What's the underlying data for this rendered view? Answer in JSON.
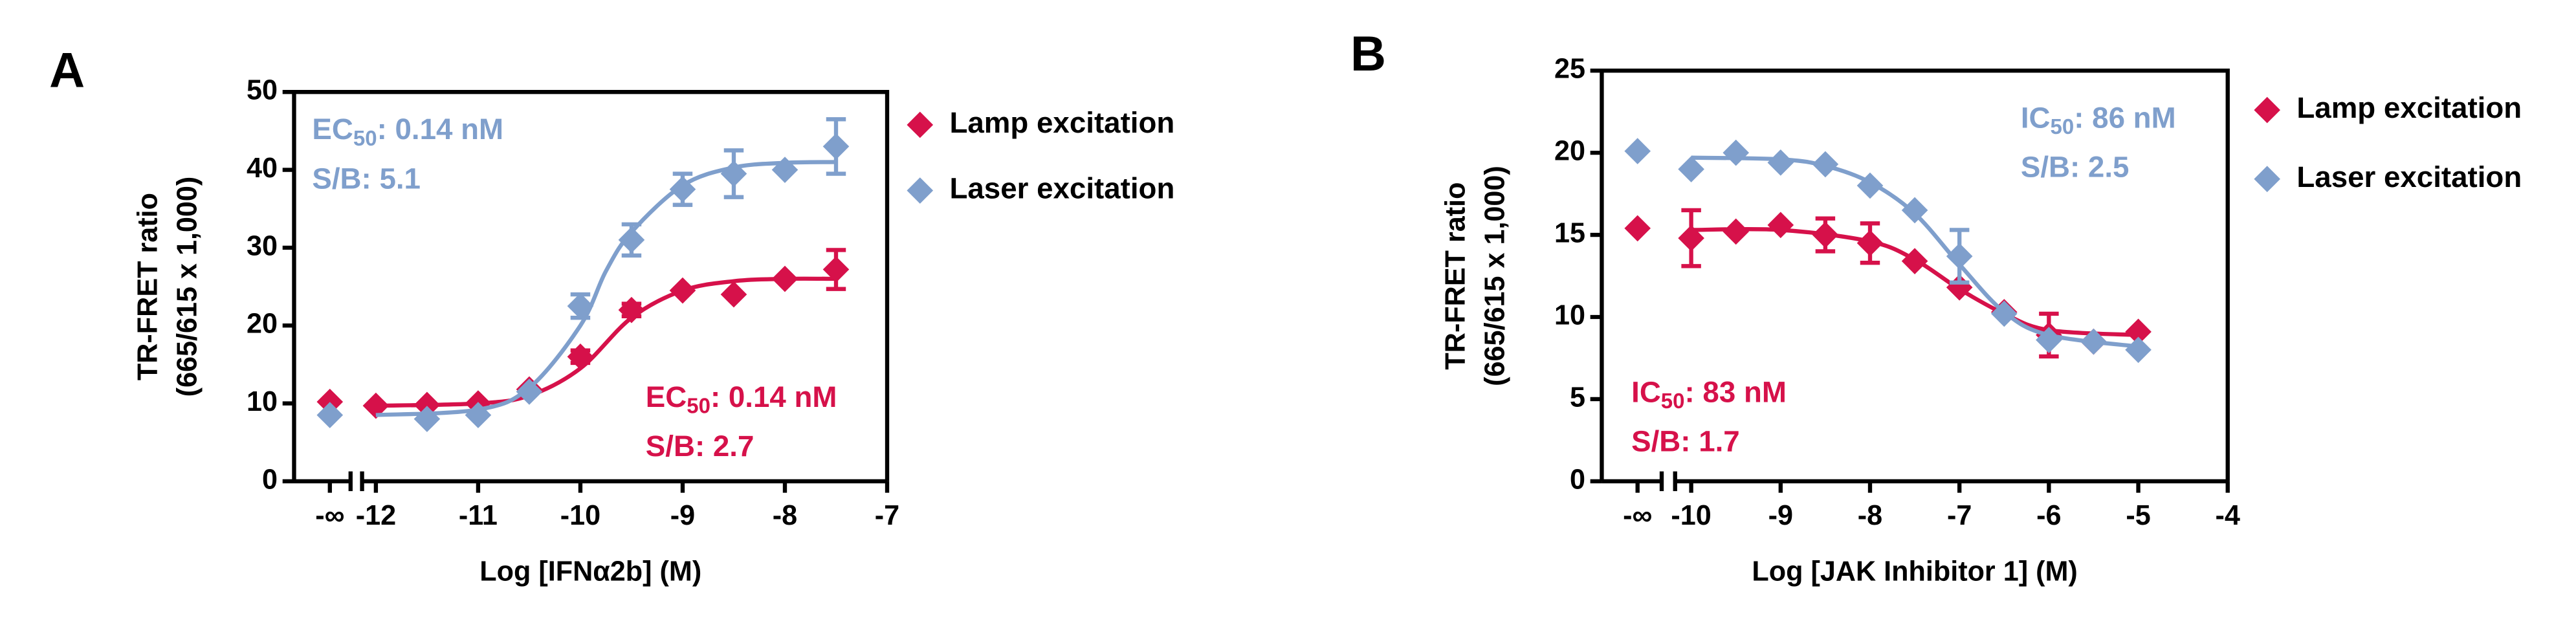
{
  "chart_data": [
    {
      "type": "scatter",
      "panel": "A",
      "xlabel": "Log [IFNα2b] (M)",
      "ylabel": [
        "TR-FRET ratio",
        "(665/615 x 1,000)"
      ],
      "xlim": [
        -12.8,
        -7
      ],
      "ylim": [
        0,
        50
      ],
      "xticks": [
        {
          "value": -12.45,
          "label": "-∞"
        },
        -12,
        -11,
        -10,
        -9,
        -8,
        -7
      ],
      "yticks": [
        0,
        10,
        20,
        30,
        40,
        50
      ],
      "axis_break": true,
      "series": [
        {
          "name": "Lamp excitation",
          "color": "#d6114a",
          "x": [
            -12.45,
            -12,
            -11.5,
            -11,
            -10.5,
            -10,
            -9.5,
            -9,
            -8.5,
            -8,
            -7.5
          ],
          "values": [
            10.2,
            9.7,
            9.8,
            10,
            11.8,
            16,
            22,
            24.5,
            24,
            26,
            27.2
          ],
          "errors": [
            null,
            null,
            null,
            null,
            null,
            0.8,
            0.8,
            null,
            null,
            null,
            2.5
          ],
          "fit": {
            "x": [
              -12,
              -11,
              -10.5,
              -10,
              -9.5,
              -9,
              -8.5,
              -8,
              -7.5
            ],
            "values": [
              9.7,
              10,
              11,
              14.5,
              21,
              24.5,
              25.7,
              26,
              26
            ]
          },
          "annotation": {
            "prefix": "EC",
            "subscript": "50",
            "suffix": ": 0.14 nM",
            "line2": "S/B: 2.7"
          }
        },
        {
          "name": "Laser excitation",
          "color": "#7f9fcc",
          "x": [
            -12.45,
            -11.5,
            -11,
            -10.5,
            -10,
            -9.5,
            -9,
            -8.5,
            -8,
            -7.5
          ],
          "values": [
            8.5,
            8,
            8.5,
            11.5,
            22.5,
            31,
            37.5,
            39.5,
            40,
            43
          ],
          "errors": [
            null,
            null,
            null,
            null,
            1.5,
            2,
            2,
            3,
            null,
            3.5
          ],
          "fit": {
            "x": [
              -12,
              -11,
              -10.5,
              -10,
              -9.75,
              -9.5,
              -9,
              -8.5,
              -8,
              -7.5
            ],
            "values": [
              8.5,
              9.2,
              12,
              20,
              27,
              32,
              38,
              40.3,
              40.9,
              41
            ]
          },
          "annotation": {
            "prefix": "EC",
            "subscript": "50",
            "suffix": ": 0.14 nM",
            "line2": "S/B: 5.1"
          }
        }
      ]
    },
    {
      "type": "scatter",
      "panel": "B",
      "xlabel": "Log [JAK Inhibitor 1] (M)",
      "ylabel": [
        "TR-FRET ratio",
        "(665/615 x 1,000)"
      ],
      "xlim": [
        -11,
        -4
      ],
      "ylim": [
        0,
        25
      ],
      "xticks": [
        {
          "value": -10.6,
          "label": "-∞"
        },
        -10,
        -9,
        -8,
        -7,
        -6,
        -5,
        -4
      ],
      "yticks": [
        0,
        5,
        10,
        15,
        20,
        25
      ],
      "axis_break": true,
      "series": [
        {
          "name": "Lamp excitation",
          "color": "#d6114a",
          "x": [
            -10.6,
            -10,
            -9.5,
            -9,
            -8.5,
            -8,
            -7.5,
            -7,
            -6.5,
            -6,
            -5.5,
            -5
          ],
          "values": [
            15.4,
            14.8,
            15.2,
            15.6,
            15,
            14.5,
            13.4,
            11.8,
            10.3,
            8.9,
            8.5,
            9.1
          ],
          "errors": [
            null,
            1.7,
            null,
            null,
            1,
            1.2,
            null,
            null,
            null,
            1.3,
            null,
            null
          ],
          "fit": {
            "x": [
              -10,
              -9,
              -8,
              -7.5,
              -7,
              -6.5,
              -6,
              -5
            ],
            "values": [
              15.3,
              15.3,
              14.6,
              13.5,
              11.7,
              10.2,
              9.2,
              8.9
            ]
          },
          "annotation": {
            "prefix": "IC",
            "subscript": "50",
            "suffix": ": 83 nM",
            "line2": "S/B: 1.7"
          }
        },
        {
          "name": "Laser excitation",
          "color": "#7f9fcc",
          "x": [
            -10.6,
            -10,
            -9.5,
            -9,
            -8.5,
            -8,
            -7.5,
            -7,
            -6.5,
            -6,
            -5.5,
            -5
          ],
          "values": [
            20.1,
            19,
            20,
            19.4,
            19.3,
            18,
            16.5,
            13.7,
            10.2,
            8.6,
            8.5,
            8
          ],
          "errors": [
            null,
            null,
            null,
            null,
            null,
            null,
            null,
            1.6,
            null,
            null,
            null,
            null
          ],
          "fit": {
            "x": [
              -10,
              -9,
              -8.5,
              -8,
              -7.5,
              -7,
              -6.5,
              -6,
              -5
            ],
            "values": [
              19.7,
              19.6,
              19.2,
              18.2,
              16.3,
              13.2,
              10.3,
              8.9,
              8.2
            ]
          },
          "annotation": {
            "prefix": "IC",
            "subscript": "50",
            "suffix": ": 86 nM",
            "line2": "S/B: 2.5"
          }
        }
      ]
    }
  ]
}
